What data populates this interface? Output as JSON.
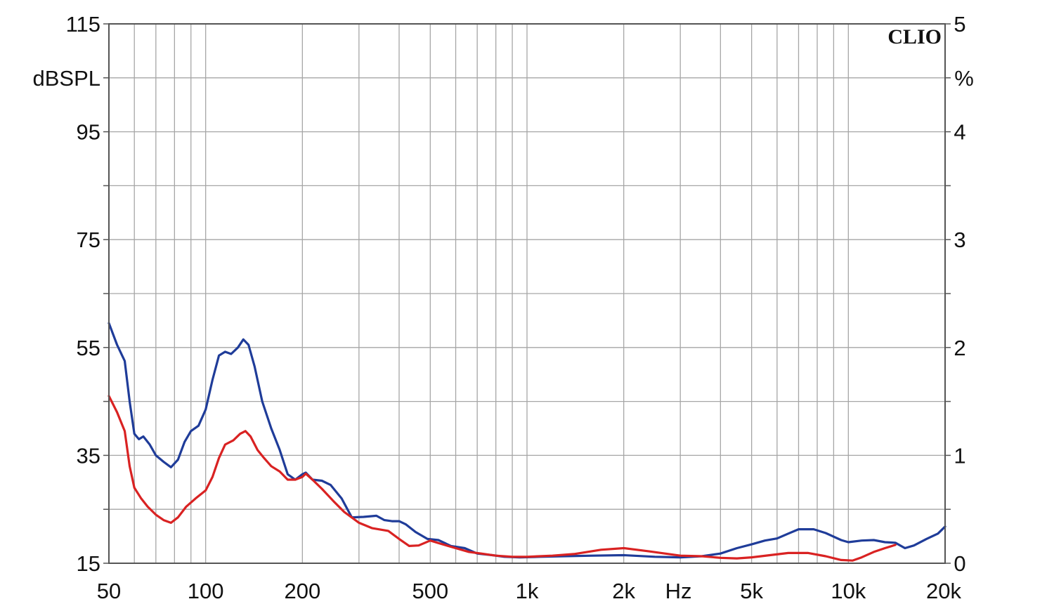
{
  "chart_data": {
    "type": "line",
    "brand": "CLIO",
    "x_scale": "log",
    "xlim": [
      50,
      20000
    ],
    "xticks": [
      {
        "value": 50,
        "label": "50"
      },
      {
        "value": 100,
        "label": "100"
      },
      {
        "value": 200,
        "label": "200"
      },
      {
        "value": 500,
        "label": "500"
      },
      {
        "value": 1000,
        "label": "1k"
      },
      {
        "value": 2000,
        "label": "2k"
      },
      {
        "value": 5000,
        "label": "5k"
      },
      {
        "value": 10000,
        "label": "10k"
      },
      {
        "value": 20000,
        "label": "20k"
      }
    ],
    "xunit": "Hz",
    "ylim_left": [
      15,
      115
    ],
    "ylabel_left": "dBSPL",
    "yticks_left": [
      {
        "value": 15,
        "label": "15"
      },
      {
        "value": 35,
        "label": "35"
      },
      {
        "value": 55,
        "label": "55"
      },
      {
        "value": 75,
        "label": "75"
      },
      {
        "value": 95,
        "label": "95"
      },
      {
        "value": 115,
        "label": "115"
      }
    ],
    "ylim_right": [
      0,
      5
    ],
    "ylabel_right": "%",
    "yticks_right": [
      {
        "value": 0,
        "label": "0"
      },
      {
        "value": 1,
        "label": "1"
      },
      {
        "value": 2,
        "label": "2"
      },
      {
        "value": 3,
        "label": "3"
      },
      {
        "value": 4,
        "label": "4"
      },
      {
        "value": 5,
        "label": "5"
      }
    ],
    "grid": true,
    "series": [
      {
        "color": "#1f3c99",
        "axis": "left",
        "points": [
          [
            50,
            59.5
          ],
          [
            53,
            55.5
          ],
          [
            56,
            52.5
          ],
          [
            58,
            45
          ],
          [
            60,
            39
          ],
          [
            62,
            38
          ],
          [
            64,
            38.5
          ],
          [
            67,
            37
          ],
          [
            70,
            35
          ],
          [
            74,
            33.8
          ],
          [
            78,
            32.8
          ],
          [
            82,
            34.2
          ],
          [
            86,
            37.5
          ],
          [
            90,
            39.5
          ],
          [
            95,
            40.5
          ],
          [
            100,
            43.5
          ],
          [
            105,
            49
          ],
          [
            110,
            53.5
          ],
          [
            115,
            54.2
          ],
          [
            120,
            53.8
          ],
          [
            126,
            55
          ],
          [
            131,
            56.5
          ],
          [
            136,
            55.5
          ],
          [
            142,
            51.5
          ],
          [
            150,
            45
          ],
          [
            160,
            40
          ],
          [
            170,
            36
          ],
          [
            180,
            31.5
          ],
          [
            190,
            30.5
          ],
          [
            200,
            31.5
          ],
          [
            205,
            31.8
          ],
          [
            215,
            30.5
          ],
          [
            230,
            30.3
          ],
          [
            245,
            29.5
          ],
          [
            265,
            27
          ],
          [
            285,
            23.5
          ],
          [
            310,
            23.6
          ],
          [
            340,
            23.8
          ],
          [
            360,
            23
          ],
          [
            380,
            22.8
          ],
          [
            400,
            22.8
          ],
          [
            420,
            22.2
          ],
          [
            450,
            20.8
          ],
          [
            490,
            19.5
          ],
          [
            530,
            19.3
          ],
          [
            580,
            18.2
          ],
          [
            640,
            17.8
          ],
          [
            700,
            16.8
          ],
          [
            780,
            16.5
          ],
          [
            850,
            16.2
          ],
          [
            950,
            16.1
          ],
          [
            1100,
            16.2
          ],
          [
            1300,
            16.3
          ],
          [
            1600,
            16.4
          ],
          [
            2000,
            16.5
          ],
          [
            2500,
            16.2
          ],
          [
            3000,
            16.1
          ],
          [
            3500,
            16.3
          ],
          [
            4000,
            16.8
          ],
          [
            4500,
            17.8
          ],
          [
            5000,
            18.5
          ],
          [
            5500,
            19.2
          ],
          [
            6000,
            19.6
          ],
          [
            6500,
            20.5
          ],
          [
            7000,
            21.3
          ],
          [
            7800,
            21.3
          ],
          [
            8500,
            20.6
          ],
          [
            9500,
            19.3
          ],
          [
            10000,
            18.9
          ],
          [
            11000,
            19.2
          ],
          [
            12000,
            19.3
          ],
          [
            13000,
            18.9
          ],
          [
            14000,
            18.8
          ],
          [
            15000,
            17.8
          ],
          [
            16000,
            18.3
          ],
          [
            17500,
            19.5
          ],
          [
            19000,
            20.5
          ],
          [
            20000,
            21.8
          ]
        ]
      },
      {
        "color": "#d92222",
        "axis": "left",
        "points": [
          [
            50,
            46
          ],
          [
            53,
            43
          ],
          [
            56,
            39.5
          ],
          [
            58,
            33
          ],
          [
            60,
            29
          ],
          [
            63,
            27
          ],
          [
            66,
            25.5
          ],
          [
            70,
            24
          ],
          [
            74,
            23
          ],
          [
            78,
            22.5
          ],
          [
            82,
            23.5
          ],
          [
            87,
            25.5
          ],
          [
            93,
            27
          ],
          [
            100,
            28.5
          ],
          [
            105,
            31
          ],
          [
            110,
            34.5
          ],
          [
            115,
            37
          ],
          [
            122,
            37.8
          ],
          [
            128,
            39
          ],
          [
            133,
            39.5
          ],
          [
            138,
            38.5
          ],
          [
            145,
            36
          ],
          [
            152,
            34.5
          ],
          [
            160,
            33
          ],
          [
            170,
            32
          ],
          [
            180,
            30.5
          ],
          [
            190,
            30.5
          ],
          [
            200,
            31
          ],
          [
            205,
            31.6
          ],
          [
            215,
            30.5
          ],
          [
            230,
            28.8
          ],
          [
            250,
            26.5
          ],
          [
            270,
            24.5
          ],
          [
            300,
            22.5
          ],
          [
            330,
            21.5
          ],
          [
            370,
            21
          ],
          [
            400,
            19.5
          ],
          [
            430,
            18.2
          ],
          [
            460,
            18.3
          ],
          [
            500,
            19.2
          ],
          [
            540,
            18.6
          ],
          [
            600,
            17.8
          ],
          [
            660,
            17.1
          ],
          [
            720,
            16.8
          ],
          [
            800,
            16.4
          ],
          [
            900,
            16.2
          ],
          [
            1000,
            16.2
          ],
          [
            1200,
            16.4
          ],
          [
            1400,
            16.7
          ],
          [
            1700,
            17.5
          ],
          [
            2000,
            17.8
          ],
          [
            2400,
            17.2
          ],
          [
            3000,
            16.4
          ],
          [
            3500,
            16.3
          ],
          [
            4000,
            16
          ],
          [
            4500,
            15.9
          ],
          [
            5000,
            16.1
          ],
          [
            5700,
            16.5
          ],
          [
            6500,
            16.9
          ],
          [
            7500,
            16.9
          ],
          [
            8500,
            16.3
          ],
          [
            9500,
            15.6
          ],
          [
            10300,
            15.5
          ],
          [
            11000,
            16.1
          ],
          [
            12000,
            17.1
          ],
          [
            13000,
            17.8
          ],
          [
            14000,
            18.4
          ]
        ]
      }
    ]
  }
}
